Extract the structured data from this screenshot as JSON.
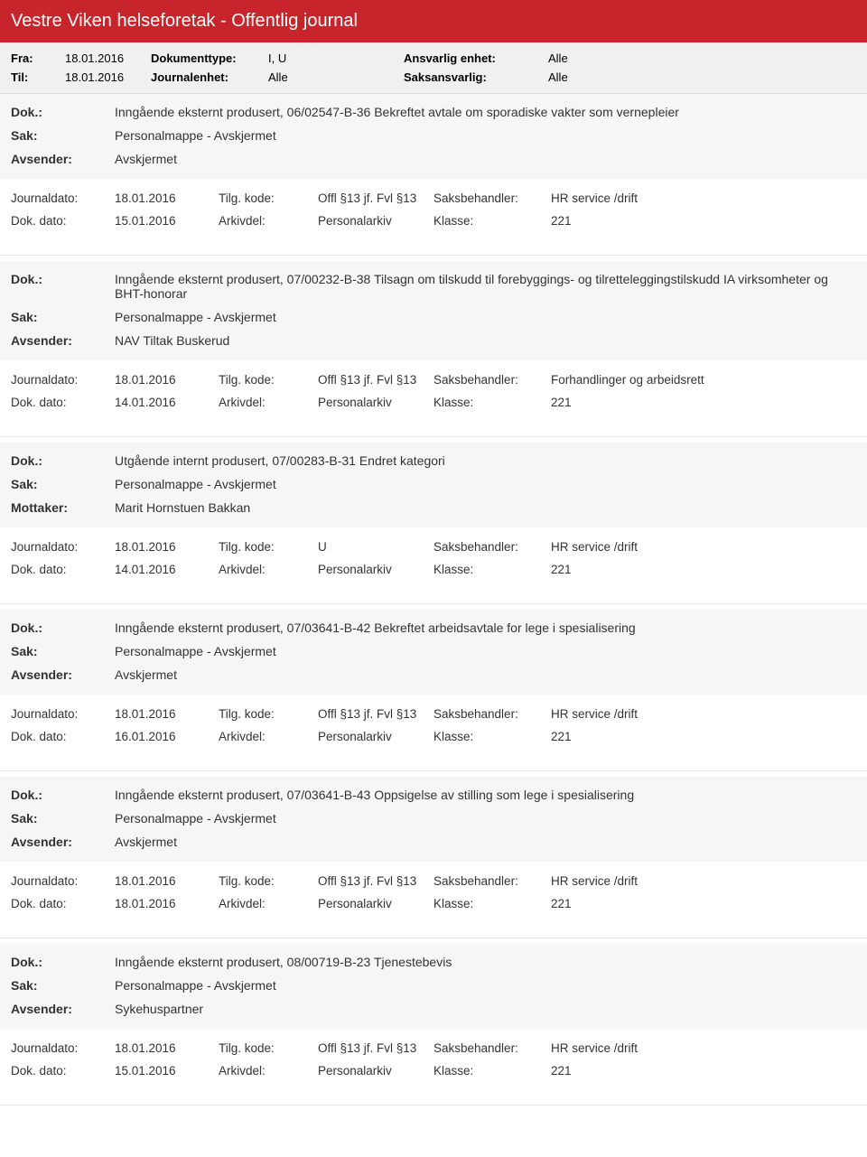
{
  "header": {
    "title": "Vestre Viken helseforetak - Offentlig journal"
  },
  "filters": {
    "fra_label": "Fra:",
    "fra_val": "18.01.2016",
    "til_label": "Til:",
    "til_val": "18.01.2016",
    "doktype_label": "Dokumenttype:",
    "doktype_val": "I, U",
    "journalenhet_label": "Journalenhet:",
    "journalenhet_val": "Alle",
    "ansvarlig_label": "Ansvarlig enhet:",
    "ansvarlig_val": "Alle",
    "saksansvarlig_label": "Saksansvarlig:",
    "saksansvarlig_val": "Alle"
  },
  "labels": {
    "dok": "Dok.:",
    "sak": "Sak:",
    "avsender": "Avsender:",
    "mottaker": "Mottaker:",
    "journaldato": "Journaldato:",
    "dokdato": "Dok. dato:",
    "tilgkode": "Tilg. kode:",
    "arkivdel": "Arkivdel:",
    "saksbehandler": "Saksbehandler:",
    "klasse": "Klasse:"
  },
  "entries": [
    {
      "dok": "Inngående eksternt produsert, 06/02547-B-36 Bekreftet avtale om sporadiske vakter som vernepleier",
      "sak": "Personalmappe - Avskjermet",
      "party_label": "Avsender:",
      "party": "Avskjermet",
      "journaldato": "18.01.2016",
      "tilgkode": "Offl §13 jf. Fvl §13",
      "saksbehandler": "HR service /drift",
      "dokdato": "15.01.2016",
      "arkivdel": "Personalarkiv",
      "klasse": "221"
    },
    {
      "dok": "Inngående eksternt produsert, 07/00232-B-38 Tilsagn om tilskudd til forebyggings- og tilretteleggingstilskudd IA virksomheter og BHT-honorar",
      "sak": "Personalmappe - Avskjermet",
      "party_label": "Avsender:",
      "party": "NAV Tiltak Buskerud",
      "journaldato": "18.01.2016",
      "tilgkode": "Offl §13 jf. Fvl §13",
      "saksbehandler": "Forhandlinger og arbeidsrett",
      "dokdato": "14.01.2016",
      "arkivdel": "Personalarkiv",
      "klasse": "221"
    },
    {
      "dok": "Utgående internt produsert, 07/00283-B-31 Endret kategori",
      "sak": "Personalmappe - Avskjermet",
      "party_label": "Mottaker:",
      "party": "Marit Hornstuen Bakkan",
      "journaldato": "18.01.2016",
      "tilgkode": "U",
      "saksbehandler": "HR service /drift",
      "dokdato": "14.01.2016",
      "arkivdel": "Personalarkiv",
      "klasse": "221"
    },
    {
      "dok": "Inngående eksternt produsert, 07/03641-B-42 Bekreftet arbeidsavtale for lege i spesialisering",
      "sak": "Personalmappe - Avskjermet",
      "party_label": "Avsender:",
      "party": "Avskjermet",
      "journaldato": "18.01.2016",
      "tilgkode": "Offl §13 jf. Fvl §13",
      "saksbehandler": "HR service /drift",
      "dokdato": "16.01.2016",
      "arkivdel": "Personalarkiv",
      "klasse": "221"
    },
    {
      "dok": "Inngående eksternt produsert, 07/03641-B-43 Oppsigelse av stilling som lege i spesialisering",
      "sak": "Personalmappe - Avskjermet",
      "party_label": "Avsender:",
      "party": "Avskjermet",
      "journaldato": "18.01.2016",
      "tilgkode": "Offl §13 jf. Fvl §13",
      "saksbehandler": "HR service /drift",
      "dokdato": "18.01.2016",
      "arkivdel": "Personalarkiv",
      "klasse": "221"
    },
    {
      "dok": "Inngående eksternt produsert, 08/00719-B-23 Tjenestebevis",
      "sak": "Personalmappe - Avskjermet",
      "party_label": "Avsender:",
      "party": "Sykehuspartner",
      "journaldato": "18.01.2016",
      "tilgkode": "Offl §13 jf. Fvl §13",
      "saksbehandler": "HR service /drift",
      "dokdato": "15.01.2016",
      "arkivdel": "Personalarkiv",
      "klasse": "221"
    }
  ]
}
